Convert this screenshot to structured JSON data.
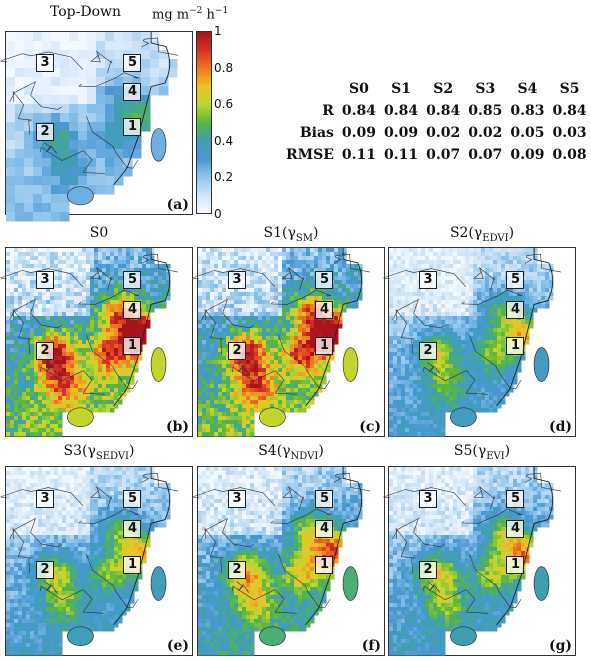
{
  "top_title": "Top-Down",
  "units": "mg m",
  "units_exp1": "−2",
  "units_h": "h",
  "units_exp2": "−1",
  "colorbar": {
    "ticks": [
      "1",
      "0.8",
      "0.6",
      "0.4",
      "0.2",
      "0"
    ],
    "colors": [
      "#f4f8ff",
      "#cfe4f8",
      "#8fc4ec",
      "#4a97d4",
      "#3f9fb0",
      "#58b63e",
      "#c0d630",
      "#f0c025",
      "#ee7520",
      "#d83024",
      "#a8141c"
    ]
  },
  "region_labels": [
    "1",
    "2",
    "3",
    "4",
    "5"
  ],
  "panels": [
    {
      "id": "a",
      "label": "(a)",
      "title": "",
      "sub": "",
      "close": "",
      "intensity": 0.55
    },
    {
      "id": "b",
      "label": "(b)",
      "title": "S0",
      "sub": "",
      "close": "",
      "intensity": 1.35
    },
    {
      "id": "c",
      "label": "(c)",
      "title": "S1(γ",
      "sub": "SM",
      "close": ")",
      "intensity": 1.35
    },
    {
      "id": "d",
      "label": "(d)",
      "title": "S2(γ",
      "sub": "EDVI",
      "close": ")",
      "intensity": 0.8
    },
    {
      "id": "e",
      "label": "(e)",
      "title": "S3(γ",
      "sub": "SEDVI",
      "close": ")",
      "intensity": 0.82
    },
    {
      "id": "f",
      "label": "(f)",
      "title": "S4(γ",
      "sub": "NDVI",
      "close": ")",
      "intensity": 1.0
    },
    {
      "id": "g",
      "label": "(g)",
      "title": "S5(γ",
      "sub": "EVI",
      "close": ")",
      "intensity": 0.88
    }
  ],
  "chart_data": {
    "type": "table",
    "columns": [
      "",
      "S0",
      "S1",
      "S2",
      "S3",
      "S4",
      "S5"
    ],
    "rows": [
      {
        "metric": "R",
        "values": [
          "0.84",
          "0.84",
          "0.84",
          "0.85",
          "0.83",
          "0.84"
        ]
      },
      {
        "metric": "Bias",
        "values": [
          "0.09",
          "0.09",
          "0.02",
          "0.02",
          "0.05",
          "0.03"
        ]
      },
      {
        "metric": "RMSE",
        "values": [
          "0.11",
          "0.11",
          "0.07",
          "0.07",
          "0.09",
          "0.08"
        ]
      }
    ],
    "colorbar_range": [
      0,
      1
    ]
  }
}
